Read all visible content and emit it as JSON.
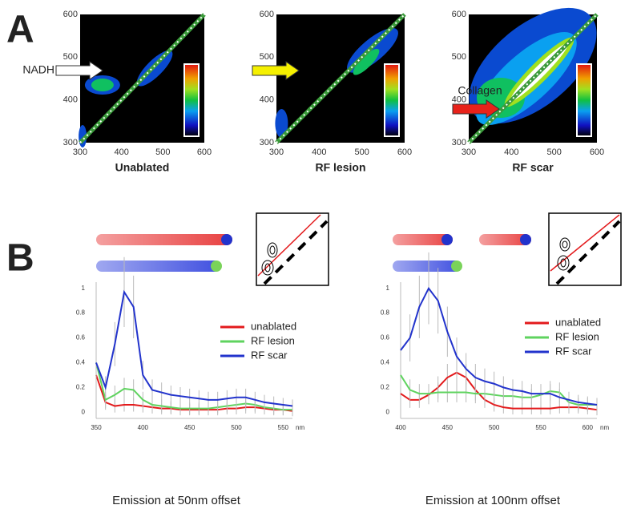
{
  "panel_labels": [
    "A",
    "B"
  ],
  "chart_data": [
    {
      "type": "contour",
      "xlabel": "Unablated",
      "xlim": [
        300,
        600
      ],
      "ylim": [
        300,
        600
      ],
      "xticks": [
        300,
        400,
        500,
        600
      ],
      "yticks": [
        300,
        400,
        500,
        600
      ],
      "annotation": "NADH",
      "arrow_color": "#ffffff"
    },
    {
      "type": "contour",
      "xlabel": "RF lesion",
      "xlim": [
        300,
        600
      ],
      "ylim": [
        300,
        600
      ],
      "xticks": [
        300,
        400,
        500,
        600
      ],
      "yticks": [
        300,
        400,
        500,
        600
      ],
      "arrow_color": "#f5f000"
    },
    {
      "type": "contour",
      "xlabel": "RF scar",
      "xlim": [
        300,
        600
      ],
      "ylim": [
        300,
        600
      ],
      "xticks": [
        300,
        400,
        500,
        600
      ],
      "yticks": [
        300,
        400,
        500,
        600
      ],
      "annotation": "Collagen",
      "arrow_color": "#e8221a"
    },
    {
      "type": "line",
      "caption": "Emission at 50nm offset",
      "x_unit": "nm",
      "x": [
        350,
        360,
        370,
        380,
        390,
        400,
        410,
        420,
        430,
        440,
        450,
        460,
        470,
        480,
        490,
        500,
        510,
        520,
        530,
        540,
        550,
        560
      ],
      "xlim": [
        350,
        560
      ],
      "xticks": [
        350,
        400,
        450,
        500,
        550
      ],
      "ylim": [
        -0.05,
        1.05
      ],
      "yticks": [
        0,
        0.2,
        0.4,
        0.6,
        0.8,
        1
      ],
      "series": [
        {
          "name": "unablated",
          "color": "#e31a1c",
          "values": [
            0.3,
            0.08,
            0.05,
            0.06,
            0.06,
            0.05,
            0.04,
            0.03,
            0.03,
            0.02,
            0.02,
            0.02,
            0.02,
            0.02,
            0.03,
            0.03,
            0.04,
            0.04,
            0.03,
            0.02,
            0.02,
            0.01
          ]
        },
        {
          "name": "RF lesion",
          "color": "#5fd35f",
          "values": [
            0.4,
            0.1,
            0.14,
            0.19,
            0.18,
            0.1,
            0.06,
            0.05,
            0.04,
            0.03,
            0.03,
            0.03,
            0.03,
            0.04,
            0.05,
            0.06,
            0.07,
            0.06,
            0.04,
            0.03,
            0.02,
            0.02
          ]
        },
        {
          "name": "RF scar",
          "color": "#2233cc",
          "values": [
            0.4,
            0.2,
            0.55,
            0.97,
            0.85,
            0.3,
            0.18,
            0.16,
            0.14,
            0.13,
            0.12,
            0.11,
            0.1,
            0.1,
            0.11,
            0.12,
            0.12,
            0.1,
            0.08,
            0.07,
            0.06,
            0.05
          ]
        }
      ]
    },
    {
      "type": "line",
      "caption": "Emission at 100nm offset",
      "x_unit": "nm",
      "x": [
        400,
        410,
        420,
        430,
        440,
        450,
        460,
        470,
        480,
        490,
        500,
        510,
        520,
        530,
        540,
        550,
        560,
        570,
        580,
        590,
        600,
        610
      ],
      "xlim": [
        400,
        610
      ],
      "xticks": [
        400,
        450,
        500,
        550,
        600
      ],
      "ylim": [
        -0.05,
        1.05
      ],
      "yticks": [
        0,
        0.2,
        0.4,
        0.6,
        0.8,
        1
      ],
      "series": [
        {
          "name": "unablated",
          "color": "#e31a1c",
          "values": [
            0.15,
            0.1,
            0.1,
            0.14,
            0.2,
            0.28,
            0.32,
            0.28,
            0.18,
            0.1,
            0.06,
            0.04,
            0.03,
            0.03,
            0.03,
            0.03,
            0.03,
            0.04,
            0.04,
            0.04,
            0.03,
            0.02
          ]
        },
        {
          "name": "RF lesion",
          "color": "#5fd35f",
          "values": [
            0.3,
            0.18,
            0.15,
            0.15,
            0.16,
            0.16,
            0.16,
            0.16,
            0.15,
            0.15,
            0.14,
            0.13,
            0.13,
            0.12,
            0.12,
            0.14,
            0.17,
            0.16,
            0.08,
            0.06,
            0.06,
            0.06
          ]
        },
        {
          "name": "RF scar",
          "color": "#2233cc",
          "values": [
            0.5,
            0.6,
            0.85,
            1.0,
            0.9,
            0.65,
            0.45,
            0.35,
            0.28,
            0.25,
            0.23,
            0.2,
            0.18,
            0.17,
            0.15,
            0.15,
            0.15,
            0.12,
            0.1,
            0.08,
            0.07,
            0.06
          ]
        }
      ]
    }
  ]
}
